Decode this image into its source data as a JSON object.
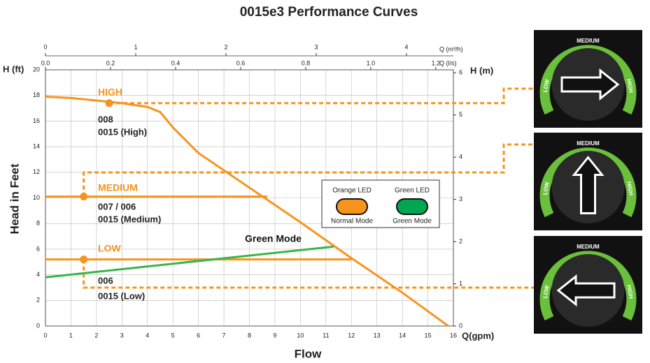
{
  "chart_data": {
    "type": "line",
    "title": "0015e3 Performance Curves",
    "xlabel": "Flow",
    "ylabel": "Head in Feet",
    "x_unit": "Q(gpm)",
    "y_unit": "H (ft)",
    "y2_unit": "H (m)",
    "x2_unit": "Q (m³/h)",
    "x3_unit": "Q (l/s)",
    "xlim": [
      0,
      16
    ],
    "xticks": [
      0,
      1,
      2,
      3,
      4,
      5,
      6,
      7,
      8,
      9,
      10,
      11,
      12,
      13,
      14,
      15,
      16
    ],
    "ylim": [
      0,
      20
    ],
    "yticks": [
      0,
      2,
      4,
      6,
      8,
      10,
      12,
      14,
      16,
      18,
      20
    ],
    "y2lim": [
      0,
      6.07
    ],
    "y2ticks": [
      0,
      1,
      2,
      3,
      4,
      5,
      6
    ],
    "x2lim": [
      0,
      4.52
    ],
    "x2ticks": [
      0,
      1,
      2,
      3,
      4
    ],
    "x3lim": [
      0,
      1.254
    ],
    "x3ticks": [
      {
        "value": 0,
        "label": "0.0"
      },
      0.2,
      0.4,
      0.6,
      0.8,
      {
        "value": 1,
        "label": "1.0"
      },
      1.2
    ],
    "grid": true,
    "series": [
      {
        "name": "HIGH",
        "color": "#f7941d",
        "x": [
          0,
          1,
          2,
          3,
          4,
          4.5,
          5,
          6,
          8,
          10,
          12,
          14,
          15.8
        ],
        "values": [
          17.9,
          17.8,
          17.6,
          17.4,
          17.1,
          16.7,
          15.5,
          13.5,
          10.8,
          8.1,
          5.3,
          2.6,
          0
        ]
      },
      {
        "name": "MEDIUM",
        "color": "#f7941d",
        "x": [
          0,
          8.7
        ],
        "values": [
          10.1,
          10.1
        ]
      },
      {
        "name": "LOW",
        "color": "#f7941d",
        "x": [
          0,
          12
        ],
        "values": [
          5.2,
          5.2
        ]
      },
      {
        "name": "Green Mode",
        "color": "#39b54a",
        "x": [
          0,
          11.3
        ],
        "values": [
          3.8,
          6.2
        ]
      }
    ],
    "markers": [
      {
        "x": 2.5,
        "y": 17.4
      },
      {
        "x": 1.5,
        "y": 10.1
      },
      {
        "x": 1.5,
        "y": 5.2
      }
    ],
    "annotations": [
      "008",
      "0015 (High)",
      "007 / 006",
      "0015 (Medium)",
      "006",
      "0015 (Low)"
    ],
    "legend": [
      {
        "title": "Orange LED",
        "label": "Normal Mode",
        "color": "#f7941d"
      },
      {
        "title": "Green LED",
        "label": "Green Mode",
        "color": "#00a651"
      }
    ],
    "dial_labels": [
      "LOW",
      "MEDIUM",
      "HIGH"
    ]
  }
}
